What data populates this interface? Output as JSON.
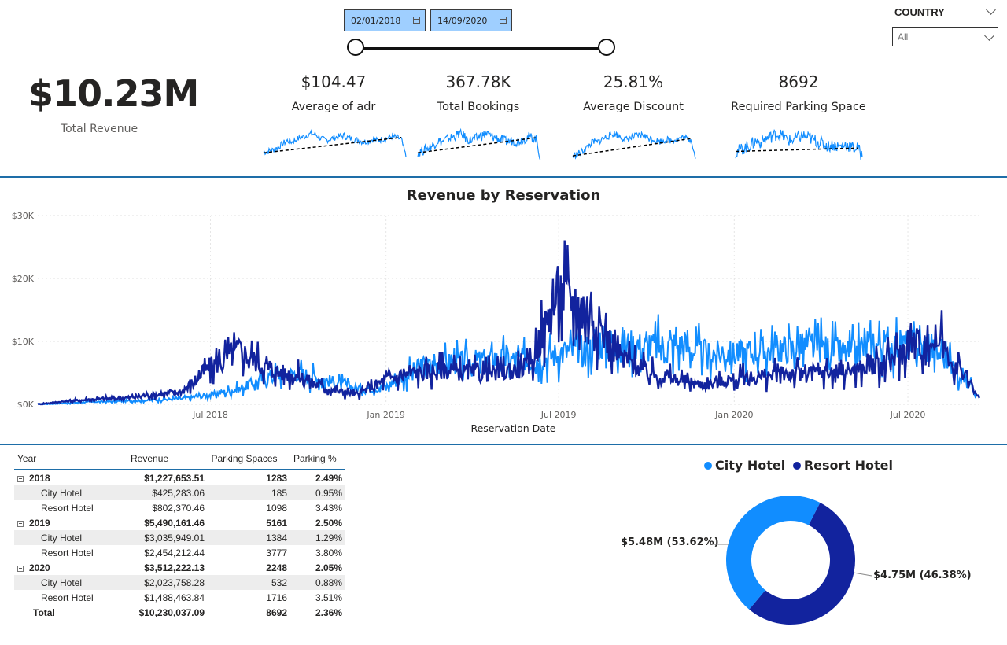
{
  "date_slicer": {
    "start": "02/01/2018",
    "end": "14/09/2020"
  },
  "country_slicer": {
    "title": "COUNTRY",
    "selected": "All"
  },
  "kpis": {
    "total_revenue": {
      "value": "$10.23M",
      "label": "Total Revenue"
    },
    "cards": [
      {
        "value": "$104.47",
        "label": "Average of adr"
      },
      {
        "value": "367.78K",
        "label": "Total Bookings"
      },
      {
        "value": "25.81%",
        "label": "Average Discount"
      },
      {
        "value": "8692",
        "label": "Required Parking Space"
      }
    ]
  },
  "chart_data": [
    {
      "type": "line",
      "title": "Revenue by Reservation",
      "xlabel": "Reservation Date",
      "ylabel": "",
      "x_range": [
        "2018-01-01",
        "2020-09-14"
      ],
      "x_ticks": [
        "Jul 2018",
        "Jan 2019",
        "Jul 2019",
        "Jan 2020",
        "Jul 2020"
      ],
      "y_ticks": [
        "$0K",
        "$10K",
        "$20K",
        "$30K"
      ],
      "ylim": [
        0,
        30000
      ],
      "grid": true,
      "colors": {
        "City Hotel": "#118dff",
        "Resort Hotel": "#12239e"
      },
      "series": [
        {
          "name": "City Hotel",
          "points": [
            [
              "2018-01-01",
              0
            ],
            [
              "2018-02-01",
              200
            ],
            [
              "2018-03-01",
              400
            ],
            [
              "2018-04-01",
              500
            ],
            [
              "2018-05-01",
              700
            ],
            [
              "2018-06-01",
              900
            ],
            [
              "2018-07-01",
              1500
            ],
            [
              "2018-08-01",
              2500
            ],
            [
              "2018-09-01",
              4500
            ],
            [
              "2018-10-01",
              5000
            ],
            [
              "2018-11-01",
              3800
            ],
            [
              "2018-12-01",
              2500
            ],
            [
              "2019-01-01",
              2800
            ],
            [
              "2019-02-01",
              5500
            ],
            [
              "2019-03-01",
              6500
            ],
            [
              "2019-04-01",
              6800
            ],
            [
              "2019-05-01",
              7200
            ],
            [
              "2019-06-01",
              7000
            ],
            [
              "2019-07-01",
              8000
            ],
            [
              "2019-08-01",
              9000
            ],
            [
              "2019-09-01",
              10000
            ],
            [
              "2019-10-01",
              9000
            ],
            [
              "2019-11-01",
              9500
            ],
            [
              "2019-12-01",
              8000
            ],
            [
              "2020-01-01",
              8000
            ],
            [
              "2020-02-01",
              8500
            ],
            [
              "2020-03-01",
              9000
            ],
            [
              "2020-04-01",
              9000
            ],
            [
              "2020-05-01",
              8000
            ],
            [
              "2020-06-01",
              9500
            ],
            [
              "2020-07-01",
              9500
            ],
            [
              "2020-08-01",
              8500
            ],
            [
              "2020-09-14",
              1500
            ]
          ]
        },
        {
          "name": "Resort Hotel",
          "points": [
            [
              "2018-01-01",
              0
            ],
            [
              "2018-02-01",
              500
            ],
            [
              "2018-03-01",
              800
            ],
            [
              "2018-04-01",
              1000
            ],
            [
              "2018-05-01",
              1500
            ],
            [
              "2018-06-01",
              2000
            ],
            [
              "2018-07-01",
              6000
            ],
            [
              "2018-08-01",
              8500
            ],
            [
              "2018-09-01",
              5500
            ],
            [
              "2018-10-01",
              4500
            ],
            [
              "2018-11-01",
              2500
            ],
            [
              "2018-12-01",
              1500
            ],
            [
              "2019-01-01",
              4000
            ],
            [
              "2019-02-01",
              5000
            ],
            [
              "2019-03-01",
              5500
            ],
            [
              "2019-04-01",
              5000
            ],
            [
              "2019-05-01",
              5000
            ],
            [
              "2019-06-01",
              6000
            ],
            [
              "2019-07-01",
              18000
            ],
            [
              "2019-08-01",
              15000
            ],
            [
              "2019-09-01",
              8000
            ],
            [
              "2019-10-01",
              5000
            ],
            [
              "2019-11-01",
              4000
            ],
            [
              "2019-12-01",
              3000
            ],
            [
              "2020-01-01",
              4000
            ],
            [
              "2020-02-01",
              4500
            ],
            [
              "2020-03-01",
              5000
            ],
            [
              "2020-04-01",
              5000
            ],
            [
              "2020-05-01",
              5500
            ],
            [
              "2020-06-01",
              6000
            ],
            [
              "2020-07-01",
              9000
            ],
            [
              "2020-08-01",
              10500
            ],
            [
              "2020-09-14",
              1000
            ]
          ]
        }
      ]
    },
    {
      "type": "pie",
      "title": "",
      "legend_position": "top",
      "labels": [
        "City Hotel",
        "Resort Hotel"
      ],
      "values": [
        5480000,
        4750000
      ],
      "data_labels": [
        "$5.48M (53.62%)",
        "$4.75M (46.38%)"
      ],
      "colors": [
        "#118dff",
        "#12239e"
      ]
    }
  ],
  "sparklines": [
    {
      "label": "Average of adr",
      "values": [
        30,
        32,
        35,
        40,
        48,
        55,
        52,
        58,
        62,
        66,
        70,
        68,
        60,
        56,
        58,
        62,
        64,
        66,
        60,
        58,
        56,
        52,
        54,
        58,
        55,
        58,
        60,
        64,
        62,
        58,
        20
      ]
    },
    {
      "label": "Total Bookings",
      "values": [
        20,
        22,
        25,
        28,
        32,
        38,
        36,
        40,
        42,
        44,
        48,
        46,
        40,
        38,
        40,
        44,
        46,
        48,
        44,
        42,
        40,
        38,
        36,
        38,
        36,
        38,
        40,
        44,
        42,
        40,
        10
      ]
    },
    {
      "label": "Average Discount",
      "values": [
        20,
        24,
        28,
        34,
        42,
        50,
        48,
        54,
        58,
        62,
        66,
        64,
        58,
        54,
        56,
        60,
        62,
        64,
        60,
        56,
        54,
        50,
        52,
        54,
        52,
        54,
        56,
        58,
        56,
        54,
        15
      ]
    },
    {
      "label": "Required Parking Space",
      "values": [
        15,
        18,
        20,
        22,
        25,
        28,
        26,
        30,
        32,
        34,
        36,
        34,
        30,
        28,
        30,
        32,
        34,
        32,
        30,
        28,
        26,
        24,
        22,
        24,
        22,
        22,
        24,
        22,
        20,
        20,
        10
      ]
    }
  ],
  "table": {
    "headers": [
      "Year",
      "Revenue",
      "Parking Spaces",
      "Parking %"
    ],
    "rows": [
      {
        "type": "year",
        "label": "2018",
        "revenue": "$1,227,653.51",
        "parking": "1283",
        "pct": "2.49%"
      },
      {
        "type": "sub",
        "label": "City Hotel",
        "revenue": "$425,283.06",
        "parking": "185",
        "pct": "0.95%"
      },
      {
        "type": "sub2",
        "label": "Resort Hotel",
        "revenue": "$802,370.46",
        "parking": "1098",
        "pct": "3.43%"
      },
      {
        "type": "year",
        "label": "2019",
        "revenue": "$5,490,161.46",
        "parking": "5161",
        "pct": "2.50%"
      },
      {
        "type": "sub",
        "label": "City Hotel",
        "revenue": "$3,035,949.01",
        "parking": "1384",
        "pct": "1.29%"
      },
      {
        "type": "sub2",
        "label": "Resort Hotel",
        "revenue": "$2,454,212.44",
        "parking": "3777",
        "pct": "3.80%"
      },
      {
        "type": "year",
        "label": "2020",
        "revenue": "$3,512,222.13",
        "parking": "2248",
        "pct": "2.05%"
      },
      {
        "type": "sub",
        "label": "City Hotel",
        "revenue": "$2,023,758.28",
        "parking": "532",
        "pct": "0.88%"
      },
      {
        "type": "sub2",
        "label": "Resort Hotel",
        "revenue": "$1,488,463.84",
        "parking": "1716",
        "pct": "3.51%"
      },
      {
        "type": "total",
        "label": "Total",
        "revenue": "$10,230,037.09",
        "parking": "8692",
        "pct": "2.36%"
      }
    ]
  }
}
